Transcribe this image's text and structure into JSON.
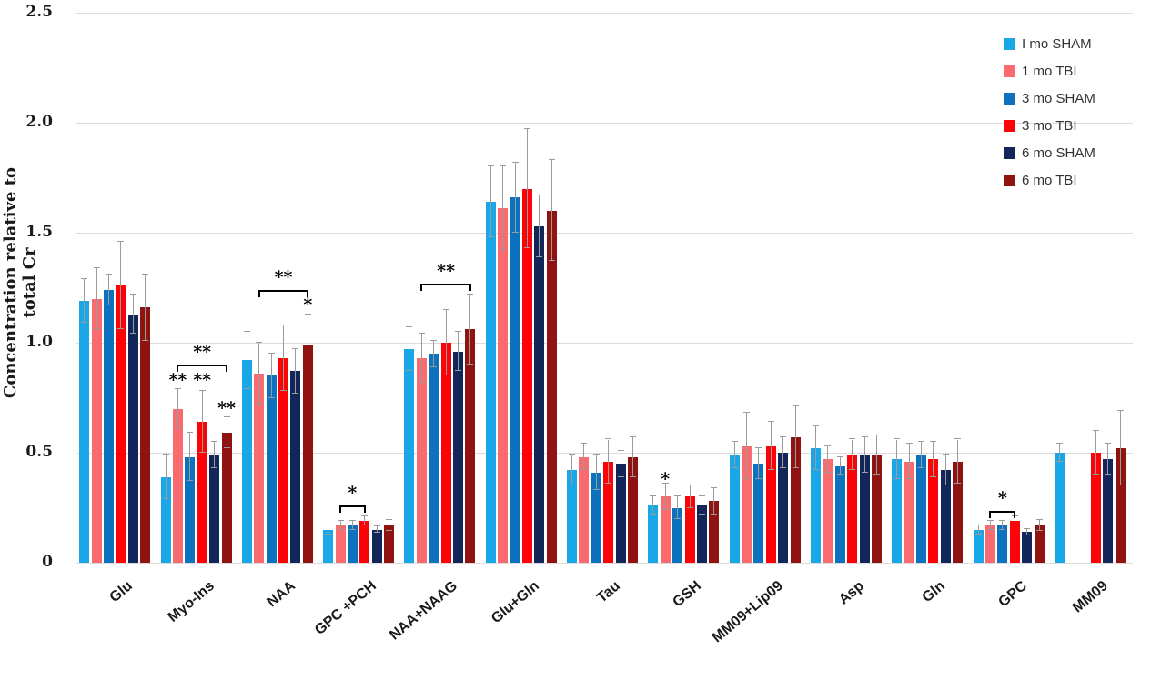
{
  "figure": {
    "background": "#ffffff",
    "error_bar_color": "#9b9b9b",
    "grid_color": "#dcdcdc"
  },
  "y_axis": {
    "title": "Concentration relative to total Cr"
  },
  "legend": {
    "position": "top-right",
    "items": [
      {
        "label": "I mo SHAM",
        "color": "#1AA7E8"
      },
      {
        "label": "1 mo TBI",
        "color": "#F96B6E"
      },
      {
        "label": "3 mo SHAM",
        "color": "#0D72BD"
      },
      {
        "label": "3 mo TBI",
        "color": "#FB0307"
      },
      {
        "label": "6 mo SHAM",
        "color": "#12265A"
      },
      {
        "label": "6 mo TBI",
        "color": "#8E1311"
      }
    ]
  },
  "chart_data": {
    "type": "bar",
    "title": "",
    "xlabel": "",
    "ylabel": "Concentration relative to total Cr",
    "ylim": [
      0,
      2.5
    ],
    "yticks": [
      {
        "v": 0,
        "label": "0"
      },
      {
        "v": 0.5,
        "label": "0.5"
      },
      {
        "v": 1.0,
        "label": "1.0"
      },
      {
        "v": 1.5,
        "label": "1.5"
      },
      {
        "v": 2.0,
        "label": "2.0"
      },
      {
        "v": 2.5,
        "label": "2.5"
      }
    ],
    "grid": true,
    "legend_position": "top-right",
    "categories": [
      "Glu",
      "Myo-Ins",
      "NAA",
      "GPC +PCH",
      "NAA+NAAG",
      "Glu+Gln",
      "Tau",
      "GSH",
      "MM09+Lip09",
      "Asp",
      "Gln",
      "GPC",
      "MM09"
    ],
    "series": [
      {
        "name": "I mo SHAM",
        "color": "#1AA7E8",
        "values": [
          1.19,
          0.39,
          0.92,
          0.15,
          0.97,
          1.64,
          0.42,
          0.26,
          0.49,
          0.52,
          0.47,
          0.15,
          0.5
        ],
        "errors": [
          0.1,
          0.1,
          0.13,
          0.02,
          0.1,
          0.16,
          0.07,
          0.04,
          0.06,
          0.1,
          0.09,
          0.02,
          0.04
        ]
      },
      {
        "name": "1 mo TBI",
        "color": "#F96B6E",
        "values": [
          1.2,
          0.7,
          0.86,
          0.17,
          0.93,
          1.61,
          0.48,
          0.3,
          0.53,
          0.47,
          0.46,
          0.17,
          null
        ],
        "errors": [
          0.14,
          0.09,
          0.14,
          0.02,
          0.11,
          0.19,
          0.06,
          0.06,
          0.15,
          0.06,
          0.08,
          0.02,
          null
        ]
      },
      {
        "name": "3 mo SHAM",
        "color": "#0D72BD",
        "values": [
          1.24,
          0.48,
          0.85,
          0.17,
          0.95,
          1.66,
          0.41,
          0.25,
          0.45,
          0.44,
          0.49,
          0.17,
          null
        ],
        "errors": [
          0.07,
          0.11,
          0.1,
          0.02,
          0.06,
          0.16,
          0.08,
          0.05,
          0.07,
          0.04,
          0.06,
          0.02,
          null
        ]
      },
      {
        "name": "3 mo TBI",
        "color": "#FB0307",
        "values": [
          1.26,
          0.64,
          0.93,
          0.19,
          1.0,
          1.7,
          0.46,
          0.3,
          0.53,
          0.49,
          0.47,
          0.19,
          0.5
        ],
        "errors": [
          0.2,
          0.14,
          0.15,
          0.02,
          0.15,
          0.27,
          0.1,
          0.05,
          0.11,
          0.07,
          0.08,
          0.02,
          0.1
        ]
      },
      {
        "name": "6 mo SHAM",
        "color": "#12265A",
        "values": [
          1.13,
          0.49,
          0.87,
          0.15,
          0.96,
          1.53,
          0.45,
          0.26,
          0.5,
          0.49,
          0.42,
          0.14,
          0.47
        ],
        "errors": [
          0.09,
          0.06,
          0.1,
          0.015,
          0.09,
          0.14,
          0.06,
          0.04,
          0.07,
          0.08,
          0.07,
          0.015,
          0.07
        ]
      },
      {
        "name": "6 mo TBI",
        "color": "#8E1311",
        "values": [
          1.16,
          0.59,
          0.99,
          0.17,
          1.06,
          1.6,
          0.48,
          0.28,
          0.57,
          0.49,
          0.46,
          0.17,
          0.52
        ],
        "errors": [
          0.15,
          0.07,
          0.14,
          0.025,
          0.16,
          0.23,
          0.09,
          0.06,
          0.14,
          0.09,
          0.1,
          0.025,
          0.17
        ]
      }
    ],
    "significance": {
      "stars": [
        {
          "category": "Myo-Ins",
          "series": "1 mo TBI",
          "label": "**",
          "y": 0.84
        },
        {
          "category": "Myo-Ins",
          "series": "3 mo TBI",
          "label": "**",
          "y": 0.84
        },
        {
          "category": "Myo-Ins",
          "series": "6 mo TBI",
          "label": "**",
          "y": 0.71
        },
        {
          "category": "NAA",
          "series": "6 mo TBI",
          "label": "*",
          "y": 1.18
        },
        {
          "category": "GSH",
          "series": "1 mo TBI",
          "label": "*",
          "y": 0.39
        }
      ],
      "brackets": [
        {
          "category": "Myo-Ins",
          "from": "1 mo TBI",
          "to": "6 mo TBI",
          "label": "**",
          "y": 0.9
        },
        {
          "category": "NAA",
          "from": "1 mo TBI",
          "to": "6 mo TBI",
          "label": "**",
          "y": 1.24
        },
        {
          "category": "NAA+NAAG",
          "from": "1 mo TBI",
          "to": "6 mo TBI",
          "label": "**",
          "y": 1.27
        },
        {
          "category": "GPC +PCH",
          "from": "1 mo TBI",
          "to": "3 mo TBI",
          "label": "*",
          "y": 0.26
        },
        {
          "category": "GPC",
          "from": "1 mo TBI",
          "to": "3 mo TBI",
          "label": "*",
          "y": 0.235
        }
      ]
    }
  }
}
